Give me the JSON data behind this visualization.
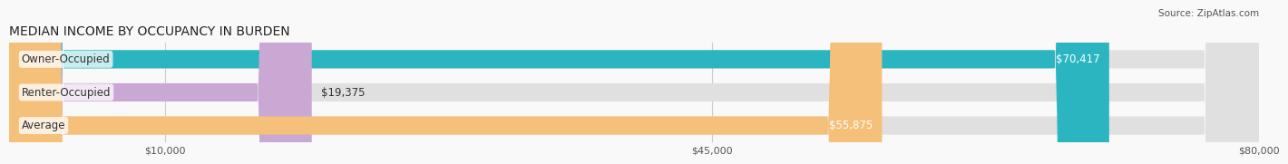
{
  "title": "MEDIAN INCOME BY OCCUPANCY IN BURDEN",
  "source": "Source: ZipAtlas.com",
  "categories": [
    "Owner-Occupied",
    "Renter-Occupied",
    "Average"
  ],
  "values": [
    70417,
    19375,
    55875
  ],
  "labels": [
    "$70,417",
    "$19,375",
    "$55,875"
  ],
  "bar_colors": [
    "#2ab5c1",
    "#c9a8d4",
    "#f5c07a"
  ],
  "bar_bg_color": "#e0e0e0",
  "xmax": 80000,
  "xticks": [
    10000,
    45000,
    80000
  ],
  "xticklabels": [
    "$10,000",
    "$45,000",
    "$80,000"
  ],
  "title_fontsize": 10,
  "source_fontsize": 7.5,
  "label_fontsize": 8.5,
  "category_fontsize": 8.5,
  "bar_height": 0.55,
  "background_color": "#f9f9f9"
}
